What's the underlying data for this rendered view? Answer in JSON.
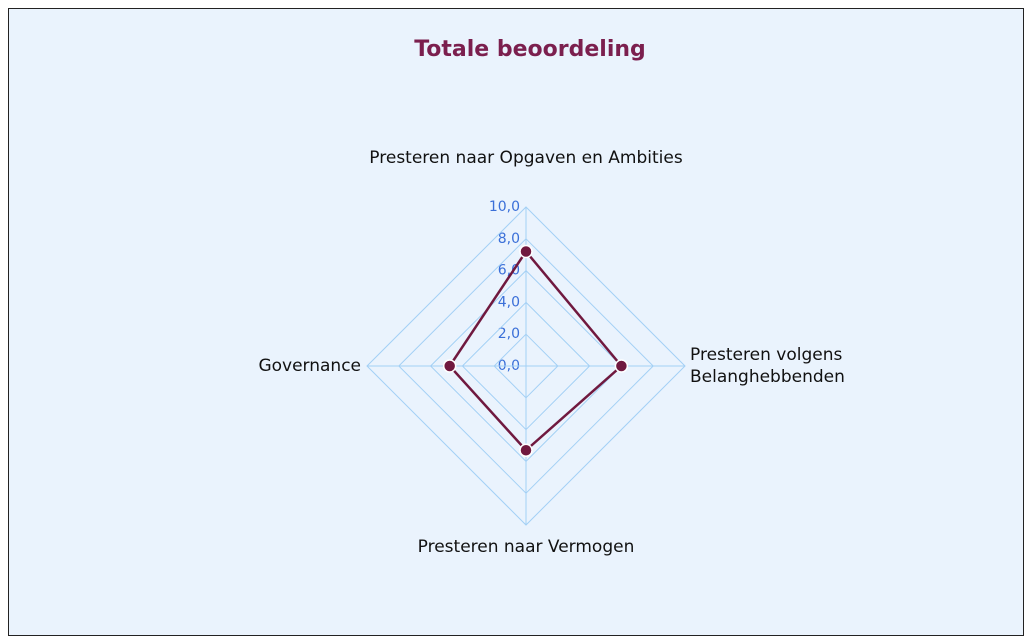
{
  "chart_data": {
    "type": "radar",
    "title": "Totale beoordeling",
    "categories": [
      "Presteren naar Opgaven en Ambities",
      "Presteren volgens Belanghebbenden",
      "Presteren naar Vermogen",
      "Governance"
    ],
    "series": [
      {
        "name": "Totale beoordeling",
        "color": "#70193f",
        "values": [
          7.2,
          6.0,
          5.3,
          4.8
        ]
      }
    ],
    "ylim": [
      0,
      10
    ],
    "yticks": [
      {
        "value": 0,
        "label": "0,0"
      },
      {
        "value": 2,
        "label": "2,0"
      },
      {
        "value": 4,
        "label": "4,0"
      },
      {
        "value": 6,
        "label": "6,0"
      },
      {
        "value": 8,
        "label": "8,0"
      },
      {
        "value": 10,
        "label": "10,0"
      }
    ],
    "grid": true
  }
}
